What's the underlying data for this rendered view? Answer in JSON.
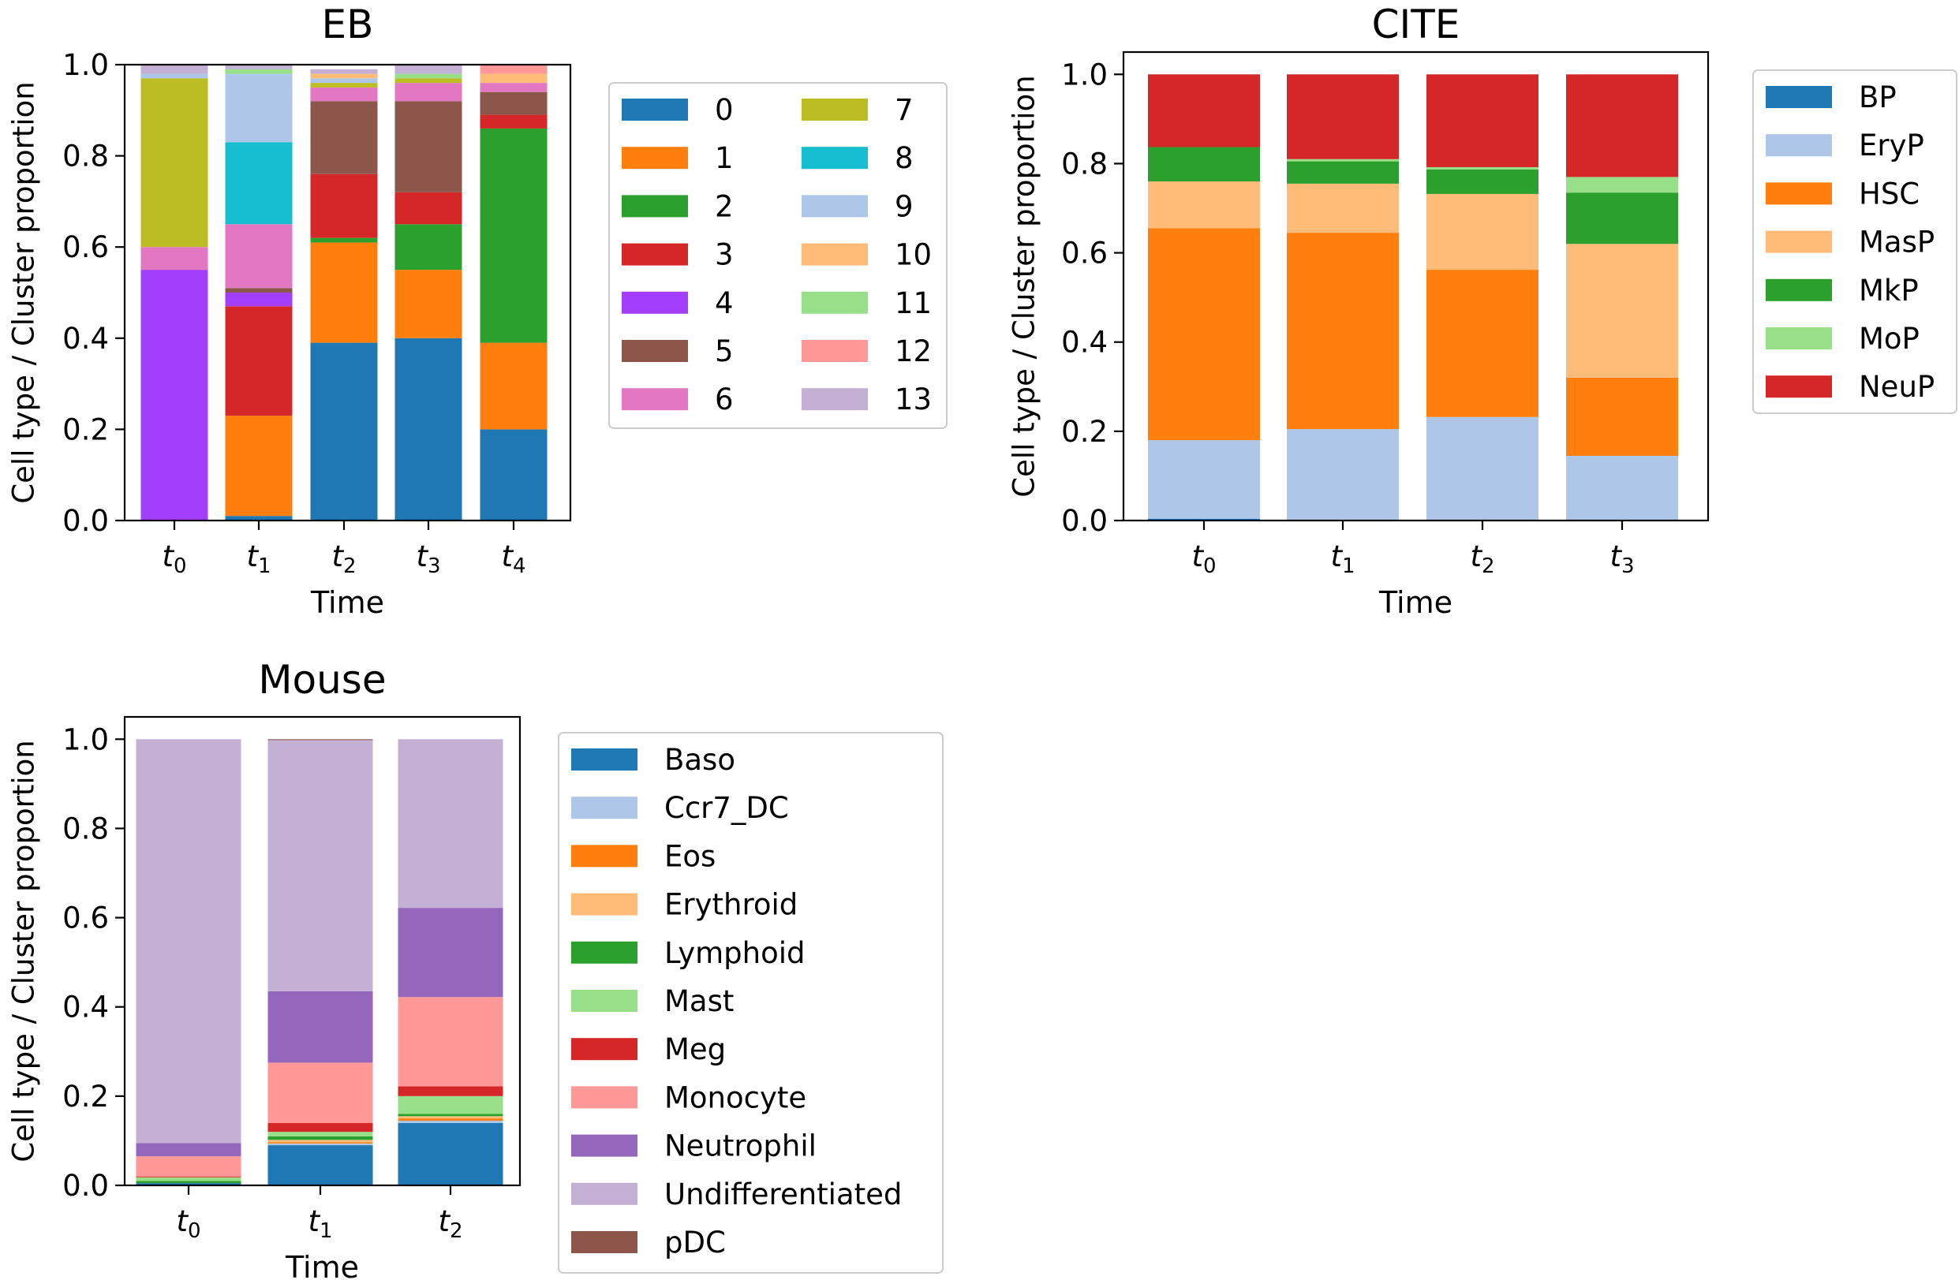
{
  "chart_data": [
    {
      "type": "bar",
      "stacked": true,
      "title": "EB",
      "xlabel": "Time",
      "ylabel": "Cell type / Cluster proportion",
      "ylim": [
        0,
        1.0
      ],
      "yticks": [
        "0.0",
        "0.2",
        "0.4",
        "0.6",
        "0.8",
        "1.0"
      ],
      "categories": [
        {
          "base": "t",
          "sub": "0"
        },
        {
          "base": "t",
          "sub": "1"
        },
        {
          "base": "t",
          "sub": "2"
        },
        {
          "base": "t",
          "sub": "3"
        },
        {
          "base": "t",
          "sub": "4"
        }
      ],
      "legend": {
        "position": "right",
        "ncol": 2
      },
      "series": [
        {
          "name": "0",
          "color": "#1f77b4",
          "values": [
            0.0,
            0.01,
            0.39,
            0.4,
            0.2
          ]
        },
        {
          "name": "1",
          "color": "#ff7f0e",
          "values": [
            0.0,
            0.22,
            0.22,
            0.15,
            0.19
          ]
        },
        {
          "name": "2",
          "color": "#2ca02c",
          "values": [
            0.0,
            0.0,
            0.01,
            0.1,
            0.47
          ]
        },
        {
          "name": "3",
          "color": "#d62728",
          "values": [
            0.0,
            0.24,
            0.14,
            0.07,
            0.03
          ]
        },
        {
          "name": "4",
          "color": "#a33ffc",
          "values": [
            0.55,
            0.03,
            0.0,
            0.0,
            0.0
          ]
        },
        {
          "name": "5",
          "color": "#8c564b",
          "values": [
            0.0,
            0.01,
            0.16,
            0.2,
            0.05
          ]
        },
        {
          "name": "6",
          "color": "#e377c2",
          "values": [
            0.05,
            0.14,
            0.03,
            0.04,
            0.02
          ]
        },
        {
          "name": "7",
          "color": "#bcbd22",
          "values": [
            0.37,
            0.0,
            0.01,
            0.01,
            0.0
          ]
        },
        {
          "name": "8",
          "color": "#17becf",
          "values": [
            0.0,
            0.18,
            0.0,
            0.0,
            0.0
          ]
        },
        {
          "name": "9",
          "color": "#aec7e8",
          "values": [
            0.01,
            0.15,
            0.01,
            0.0,
            0.0
          ]
        },
        {
          "name": "10",
          "color": "#ffbb78",
          "values": [
            0.0,
            0.0,
            0.01,
            0.0,
            0.02
          ]
        },
        {
          "name": "11",
          "color": "#98df8a",
          "values": [
            0.0,
            0.01,
            0.0,
            0.01,
            0.0
          ]
        },
        {
          "name": "12",
          "color": "#ff9896",
          "values": [
            0.0,
            0.0,
            0.0,
            0.0,
            0.02
          ]
        },
        {
          "name": "13",
          "color": "#c5b0d5",
          "values": [
            0.02,
            0.01,
            0.01,
            0.02,
            0.0
          ]
        }
      ]
    },
    {
      "type": "bar",
      "stacked": true,
      "title": "CITE",
      "xlabel": "Time",
      "ylabel": "Cell type / Cluster proportion",
      "ylim": [
        0,
        1.05
      ],
      "yticks": [
        "0.0",
        "0.2",
        "0.4",
        "0.6",
        "0.8",
        "1.0"
      ],
      "categories": [
        {
          "base": "t",
          "sub": "0"
        },
        {
          "base": "t",
          "sub": "1"
        },
        {
          "base": "t",
          "sub": "2"
        },
        {
          "base": "t",
          "sub": "3"
        }
      ],
      "legend": {
        "position": "right",
        "ncol": 1
      },
      "series": [
        {
          "name": "BP",
          "color": "#1f77b4",
          "values": [
            0.004,
            0.002,
            0.002,
            0.001
          ]
        },
        {
          "name": "EryP",
          "color": "#aec7e8",
          "values": [
            0.176,
            0.203,
            0.23,
            0.144
          ]
        },
        {
          "name": "HSC",
          "color": "#ff7f0e",
          "values": [
            0.475,
            0.44,
            0.33,
            0.175
          ]
        },
        {
          "name": "MasP",
          "color": "#ffbb78",
          "values": [
            0.105,
            0.11,
            0.17,
            0.3
          ]
        },
        {
          "name": "MkP",
          "color": "#2ca02c",
          "values": [
            0.077,
            0.05,
            0.055,
            0.115
          ]
        },
        {
          "name": "MoP",
          "color": "#98df8a",
          "values": [
            0.0,
            0.005,
            0.005,
            0.035
          ]
        },
        {
          "name": "NeuP",
          "color": "#d62728",
          "values": [
            0.163,
            0.19,
            0.208,
            0.23
          ]
        }
      ]
    },
    {
      "type": "bar",
      "stacked": true,
      "title": "Mouse",
      "xlabel": "Time",
      "ylabel": "Cell type / Cluster proportion",
      "ylim": [
        0,
        1.05
      ],
      "yticks": [
        "0.0",
        "0.2",
        "0.4",
        "0.6",
        "0.8",
        "1.0"
      ],
      "categories": [
        {
          "base": "t",
          "sub": "0"
        },
        {
          "base": "t",
          "sub": "1"
        },
        {
          "base": "t",
          "sub": "2"
        }
      ],
      "legend": {
        "position": "right",
        "ncol": 1
      },
      "series": [
        {
          "name": "Baso",
          "color": "#1f77b4",
          "values": [
            0.005,
            0.09,
            0.14
          ]
        },
        {
          "name": "Ccr7_DC",
          "color": "#aec7e8",
          "values": [
            0.0,
            0.004,
            0.005
          ]
        },
        {
          "name": "Eos",
          "color": "#ff7f0e",
          "values": [
            0.0,
            0.003,
            0.005
          ]
        },
        {
          "name": "Erythroid",
          "color": "#ffbb78",
          "values": [
            0.0,
            0.005,
            0.005
          ]
        },
        {
          "name": "Lymphoid",
          "color": "#2ca02c",
          "values": [
            0.005,
            0.008,
            0.005
          ]
        },
        {
          "name": "Mast",
          "color": "#98df8a",
          "values": [
            0.008,
            0.01,
            0.04
          ]
        },
        {
          "name": "Meg",
          "color": "#d62728",
          "values": [
            0.002,
            0.02,
            0.022
          ]
        },
        {
          "name": "Monocyte",
          "color": "#ff9896",
          "values": [
            0.045,
            0.135,
            0.2
          ]
        },
        {
          "name": "Neutrophil",
          "color": "#9467bd",
          "values": [
            0.03,
            0.16,
            0.2
          ]
        },
        {
          "name": "Undifferentiated",
          "color": "#c5b0d5",
          "values": [
            0.905,
            0.563,
            0.378
          ]
        },
        {
          "name": "pDC",
          "color": "#8c564b",
          "values": [
            0.0,
            0.002,
            0.0
          ]
        }
      ]
    }
  ]
}
